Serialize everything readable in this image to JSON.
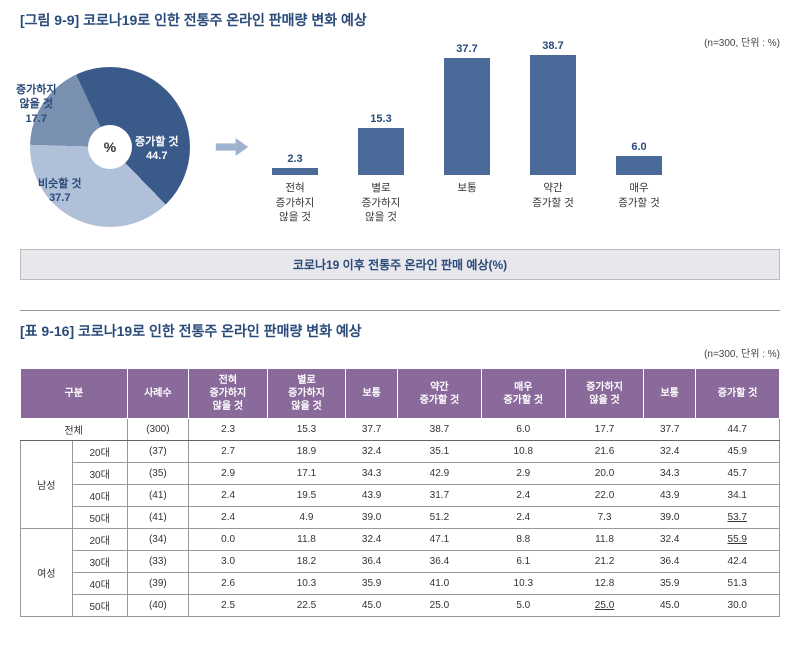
{
  "fig": {
    "title": "[그림 9-9] 코로나19로 인한 전통주 온라인 판매량 변화 예상",
    "subtitle": "(n=300, 단위 : %)",
    "pie": {
      "slices": [
        {
          "label": "증가할 것",
          "value": 44.7,
          "color": "#3a5a8a",
          "text_color": "#ffffff"
        },
        {
          "label": "비슷할 것",
          "value": 37.7,
          "color": "#b0c0d8",
          "text_color": "#2a4a7a"
        },
        {
          "label": "증가하지\n않을 것",
          "value": 17.7,
          "color": "#7a90b0",
          "text_color": "#2a4a7a"
        }
      ],
      "center": "%"
    },
    "bars": {
      "max_height": 120,
      "items": [
        {
          "label": "전혀\n증가하지\n않을 것",
          "value": 2.3
        },
        {
          "label": "별로\n증가하지\n않을 것",
          "value": 15.3
        },
        {
          "label": "보통",
          "value": 37.7
        },
        {
          "label": "약간\n증가할 것",
          "value": 38.7
        },
        {
          "label": "매우\n증가할 것",
          "value": 6.0
        }
      ],
      "color": "#4a6a9a"
    },
    "caption": "코로나19 이후 전통주 온라인 판매 예상(%)"
  },
  "table": {
    "title": "[표 9-16] 코로나19로 인한 전통주 온라인 판매량 변화 예상",
    "subtitle": "(n=300, 단위 : %)",
    "headers": [
      "구분",
      "사례수",
      "전혀\n증가하지\n않을 것",
      "별로\n증가하지\n않을 것",
      "보통",
      "약간\n증가할 것",
      "매우\n증가할 것",
      "증가하지\n않을 것",
      "보통",
      "증가할 것"
    ],
    "total": {
      "label": "전체",
      "n": "(300)",
      "v": [
        "2.3",
        "15.3",
        "37.7",
        "38.7",
        "6.0",
        "17.7",
        "37.7",
        "44.7"
      ]
    },
    "groups": [
      {
        "name": "남성",
        "rows": [
          {
            "age": "20대",
            "n": "(37)",
            "v": [
              "2.7",
              "18.9",
              "32.4",
              "35.1",
              "10.8",
              "21.6",
              "32.4",
              "45.9"
            ]
          },
          {
            "age": "30대",
            "n": "(35)",
            "v": [
              "2.9",
              "17.1",
              "34.3",
              "42.9",
              "2.9",
              "20.0",
              "34.3",
              "45.7"
            ]
          },
          {
            "age": "40대",
            "n": "(41)",
            "v": [
              "2.4",
              "19.5",
              "43.9",
              "31.7",
              "2.4",
              "22.0",
              "43.9",
              "34.1"
            ]
          },
          {
            "age": "50대",
            "n": "(41)",
            "v": [
              "2.4",
              "4.9",
              "39.0",
              "51.2",
              "2.4",
              "7.3",
              "39.0",
              "53.7"
            ],
            "u": [
              7
            ]
          }
        ]
      },
      {
        "name": "여성",
        "rows": [
          {
            "age": "20대",
            "n": "(34)",
            "v": [
              "0.0",
              "11.8",
              "32.4",
              "47.1",
              "8.8",
              "11.8",
              "32.4",
              "55.9"
            ],
            "u": [
              7
            ]
          },
          {
            "age": "30대",
            "n": "(33)",
            "v": [
              "3.0",
              "18.2",
              "36.4",
              "36.4",
              "6.1",
              "21.2",
              "36.4",
              "42.4"
            ]
          },
          {
            "age": "40대",
            "n": "(39)",
            "v": [
              "2.6",
              "10.3",
              "35.9",
              "41.0",
              "10.3",
              "12.8",
              "35.9",
              "51.3"
            ]
          },
          {
            "age": "50대",
            "n": "(40)",
            "v": [
              "2.5",
              "22.5",
              "45.0",
              "25.0",
              "5.0",
              "25.0",
              "45.0",
              "30.0"
            ],
            "u": [
              5
            ]
          }
        ]
      }
    ]
  }
}
